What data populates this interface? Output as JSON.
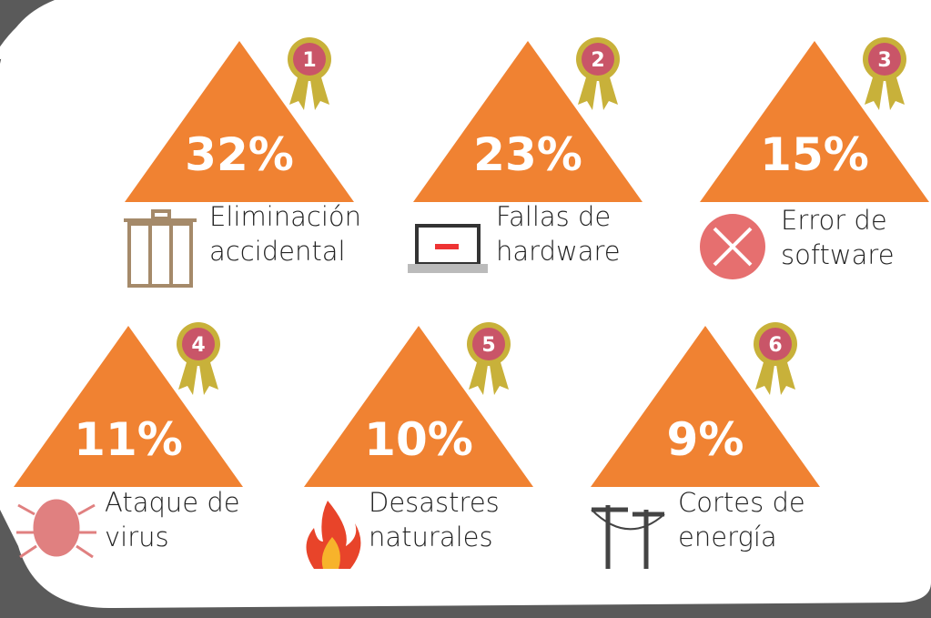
{
  "items": [
    {
      "rank": "1",
      "percent": "32%",
      "label": [
        "Eliminación",
        "accidental"
      ]
    },
    {
      "rank": "2",
      "percent": "23%",
      "label": [
        "Fallas de",
        "hardware"
      ]
    },
    {
      "rank": "3",
      "percent": "15%",
      "label": [
        "Error de",
        "software"
      ]
    },
    {
      "rank": "4",
      "percent": "11%",
      "label": [
        "Ataque de",
        "virus"
      ]
    },
    {
      "rank": "5",
      "percent": "10%",
      "label": [
        "Desastres",
        "naturales"
      ]
    },
    {
      "rank": "6",
      "percent": "9%",
      "label": [
        "Cortes de",
        "energía"
      ]
    }
  ]
}
